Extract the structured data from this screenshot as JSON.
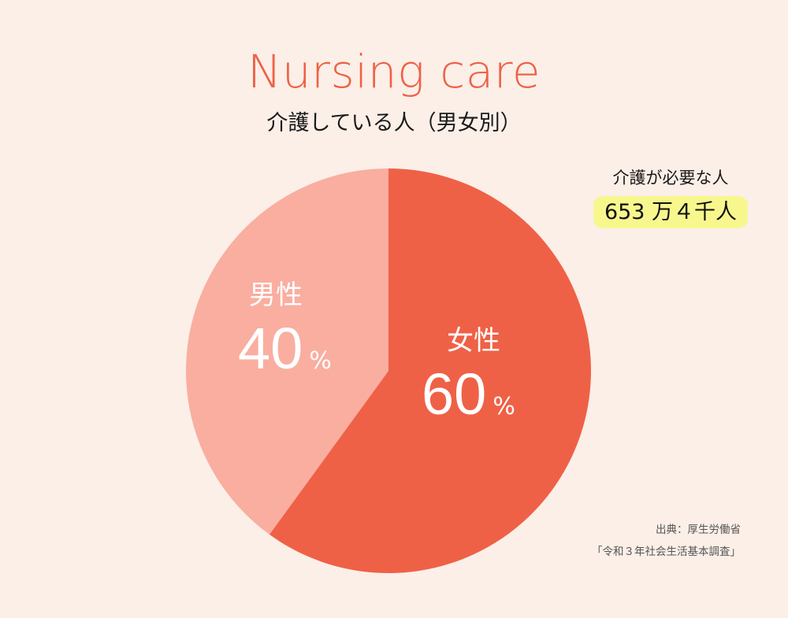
{
  "title": "Nursing care",
  "subtitle": "介護している人（男女別）",
  "colors": {
    "background": "#fbefe8",
    "title": "#ee6246",
    "female": "#ef6146",
    "male": "#f9aea0",
    "highlight": "#f8f78e"
  },
  "callout": {
    "label": "介護が必要な人",
    "value": "653 万４千人"
  },
  "slices": {
    "male": {
      "name": "男性",
      "value": "40",
      "unit": "%"
    },
    "female": {
      "name": "女性",
      "value": "60",
      "unit": "%"
    }
  },
  "source": {
    "line1": "出典：厚生労働省",
    "line2": "「令和３年社会生活基本調査」"
  },
  "chart_data": {
    "type": "pie",
    "title": "Nursing care",
    "subtitle": "介護している人（男女別）",
    "categories": [
      "女性",
      "男性"
    ],
    "values": [
      60,
      40
    ],
    "unit": "%",
    "colors": [
      "#ef6146",
      "#f9aea0"
    ],
    "start_angle": "12 o'clock, clockwise",
    "annotations": [
      "介護が必要な人 653 万４千人",
      "出典：厚生労働省「令和３年社会生活基本調査」"
    ],
    "legend": "none (labels on slices)"
  }
}
